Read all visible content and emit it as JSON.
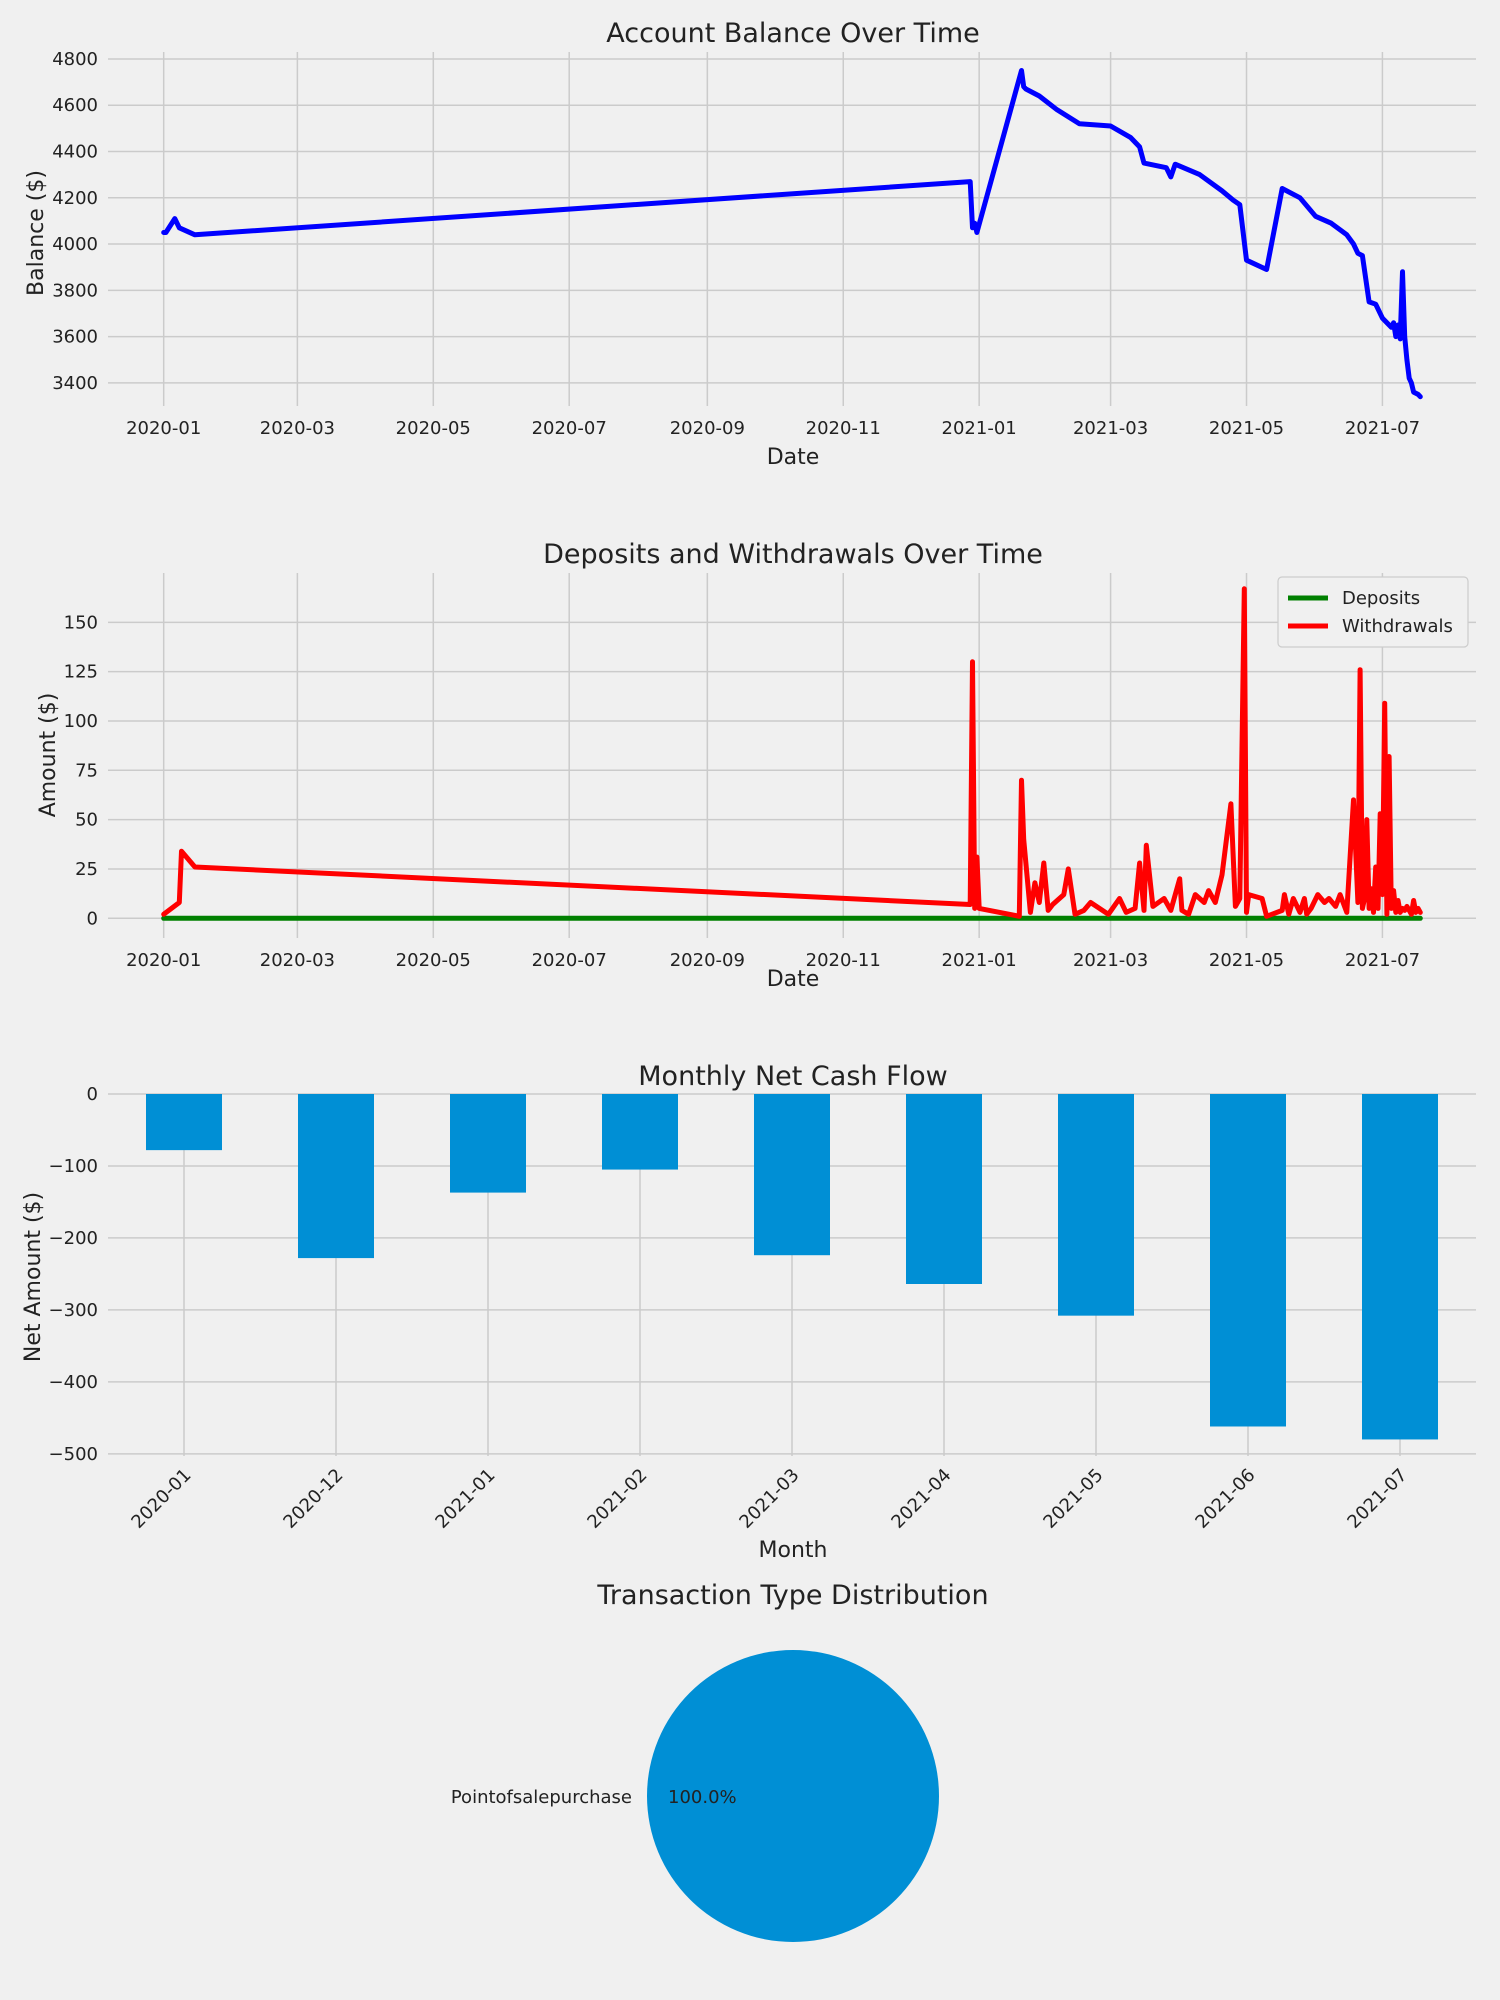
{
  "colors": {
    "background": "#f0f0f0",
    "grid": "#cbcbcb",
    "balance_line": "#0000ff",
    "deposits_line": "#008000",
    "withdrawals_line": "#ff0000",
    "bar": "#008fd5",
    "pie": "#008fd5"
  },
  "chart_data": [
    {
      "type": "line",
      "title": "Account Balance Over Time",
      "xlabel": "Date",
      "ylabel": "Balance ($)",
      "x_ticks": [
        "2020-01",
        "2020-03",
        "2020-05",
        "2020-07",
        "2020-09",
        "2020-11",
        "2021-01",
        "2021-03",
        "2021-05",
        "2021-07"
      ],
      "y_ticks": [
        3400,
        3600,
        3800,
        4000,
        4200,
        4400,
        4600,
        4800
      ],
      "xlim": [
        "2019-12-07",
        "2021-08-12"
      ],
      "ylim": [
        3300,
        4830
      ],
      "grid": true,
      "series": [
        {
          "color": "#0000ff",
          "x": [
            "2020-01-01",
            "2020-01-02",
            "2020-01-06",
            "2020-01-08",
            "2020-01-15",
            "2020-12-28",
            "2020-12-29",
            "2020-12-30",
            "2020-12-31",
            "2021-01-20",
            "2021-01-21",
            "2021-01-22",
            "2021-01-28",
            "2021-02-05",
            "2021-02-15",
            "2021-03-01",
            "2021-03-10",
            "2021-03-14",
            "2021-03-16",
            "2021-03-26",
            "2021-03-28",
            "2021-03-30",
            "2021-04-10",
            "2021-04-20",
            "2021-04-25",
            "2021-04-28",
            "2021-05-01",
            "2021-05-10",
            "2021-05-17",
            "2021-05-25",
            "2021-06-01",
            "2021-06-08",
            "2021-06-15",
            "2021-06-18",
            "2021-06-20",
            "2021-06-22",
            "2021-06-25",
            "2021-06-28",
            "2021-07-01",
            "2021-07-05",
            "2021-07-06",
            "2021-07-07",
            "2021-07-08",
            "2021-07-09",
            "2021-07-10",
            "2021-07-11",
            "2021-07-12",
            "2021-07-13",
            "2021-07-14",
            "2021-07-15",
            "2021-07-17",
            "2021-07-18"
          ],
          "y": [
            4050,
            4050,
            4110,
            4070,
            4040,
            4270,
            4070,
            4090,
            4050,
            4750,
            4680,
            4670,
            4640,
            4580,
            4520,
            4510,
            4460,
            4420,
            4350,
            4330,
            4290,
            4345,
            4300,
            4230,
            4190,
            4170,
            3930,
            3890,
            4240,
            4200,
            4120,
            4090,
            4040,
            4000,
            3960,
            3950,
            3750,
            3740,
            3680,
            3640,
            3660,
            3600,
            3650,
            3590,
            3880,
            3600,
            3500,
            3420,
            3400,
            3360,
            3350,
            3340
          ]
        }
      ]
    },
    {
      "type": "line",
      "title": "Deposits and Withdrawals Over Time",
      "xlabel": "Date",
      "ylabel": "Amount ($)",
      "x_ticks": [
        "2020-01",
        "2020-03",
        "2020-05",
        "2020-07",
        "2020-09",
        "2020-11",
        "2021-01",
        "2021-03",
        "2021-05",
        "2021-07"
      ],
      "y_ticks": [
        0,
        25,
        50,
        75,
        100,
        125,
        150
      ],
      "xlim": [
        "2019-12-07",
        "2021-08-12"
      ],
      "ylim": [
        -10,
        175
      ],
      "grid": true,
      "legend": "top-right",
      "series": [
        {
          "name": "Deposits",
          "color": "#008000",
          "x": [
            "2020-01-01",
            "2021-07-18"
          ],
          "y": [
            0,
            0
          ]
        },
        {
          "name": "Withdrawals",
          "color": "#ff0000",
          "x": [
            "2020-01-01",
            "2020-01-08",
            "2020-01-09",
            "2020-01-15",
            "2020-12-28",
            "2020-12-29",
            "2020-12-30",
            "2020-12-31",
            "2021-01-01",
            "2021-01-19",
            "2021-01-20",
            "2021-01-21",
            "2021-01-24",
            "2021-01-26",
            "2021-01-28",
            "2021-01-30",
            "2021-02-01",
            "2021-02-03",
            "2021-02-08",
            "2021-02-10",
            "2021-02-13",
            "2021-02-17",
            "2021-02-20",
            "2021-02-28",
            "2021-03-05",
            "2021-03-08",
            "2021-03-12",
            "2021-03-14",
            "2021-03-16",
            "2021-03-17",
            "2021-03-20",
            "2021-03-25",
            "2021-03-28",
            "2021-04-01",
            "2021-04-02",
            "2021-04-05",
            "2021-04-08",
            "2021-04-12",
            "2021-04-14",
            "2021-04-17",
            "2021-04-20",
            "2021-04-24",
            "2021-04-26",
            "2021-04-28",
            "2021-04-30",
            "2021-05-01",
            "2021-05-02",
            "2021-05-08",
            "2021-05-10",
            "2021-05-17",
            "2021-05-18",
            "2021-05-20",
            "2021-05-22",
            "2021-05-25",
            "2021-05-27",
            "2021-05-28",
            "2021-05-30",
            "2021-06-02",
            "2021-06-05",
            "2021-06-07",
            "2021-06-10",
            "2021-06-12",
            "2021-06-15",
            "2021-06-18",
            "2021-06-20",
            "2021-06-21",
            "2021-06-22",
            "2021-06-23",
            "2021-06-24",
            "2021-06-25",
            "2021-06-26",
            "2021-06-27",
            "2021-06-28",
            "2021-06-29",
            "2021-06-30",
            "2021-07-01",
            "2021-07-02",
            "2021-07-03",
            "2021-07-04",
            "2021-07-05",
            "2021-07-06",
            "2021-07-07",
            "2021-07-08",
            "2021-07-09",
            "2021-07-10",
            "2021-07-11",
            "2021-07-12",
            "2021-07-13",
            "2021-07-14",
            "2021-07-15",
            "2021-07-16",
            "2021-07-17",
            "2021-07-18"
          ],
          "y": [
            2,
            8,
            34,
            26,
            7,
            130,
            5,
            31,
            5,
            1,
            70,
            40,
            3,
            18,
            8,
            28,
            4,
            7,
            12,
            25,
            2,
            4,
            8,
            2,
            10,
            3,
            5,
            28,
            4,
            37,
            6,
            10,
            4,
            20,
            4,
            2,
            12,
            8,
            14,
            8,
            22,
            58,
            6,
            10,
            167,
            3,
            12,
            10,
            1,
            4,
            12,
            2,
            10,
            3,
            10,
            2,
            5,
            12,
            8,
            10,
            6,
            12,
            3,
            60,
            8,
            126,
            5,
            10,
            50,
            5,
            15,
            3,
            26,
            5,
            53,
            12,
            109,
            2,
            82,
            5,
            14,
            3,
            9,
            3,
            5,
            4,
            6,
            4,
            2,
            9,
            3,
            5,
            3
          ]
        }
      ]
    },
    {
      "type": "bar",
      "title": "Monthly Net Cash Flow",
      "xlabel": "Month",
      "ylabel": "Net Amount ($)",
      "categories": [
        "2020-01",
        "2020-12",
        "2021-01",
        "2021-02",
        "2021-03",
        "2021-04",
        "2021-05",
        "2021-06",
        "2021-07"
      ],
      "values": [
        -78,
        -228,
        -137,
        -105,
        -224,
        -264,
        -308,
        -462,
        -480
      ],
      "y_ticks": [
        0,
        -100,
        -200,
        -300,
        -400,
        -500
      ],
      "y_tick_labels": [
        "0",
        "−100",
        "−200",
        "−300",
        "−400",
        "−500"
      ],
      "ylim": [
        -503,
        0
      ],
      "grid": true
    },
    {
      "type": "pie",
      "title": "Transaction Type Distribution",
      "labels": [
        "Pointofsalepurchase"
      ],
      "values": [
        100.0
      ],
      "pct_labels": [
        "100.0%"
      ]
    }
  ]
}
